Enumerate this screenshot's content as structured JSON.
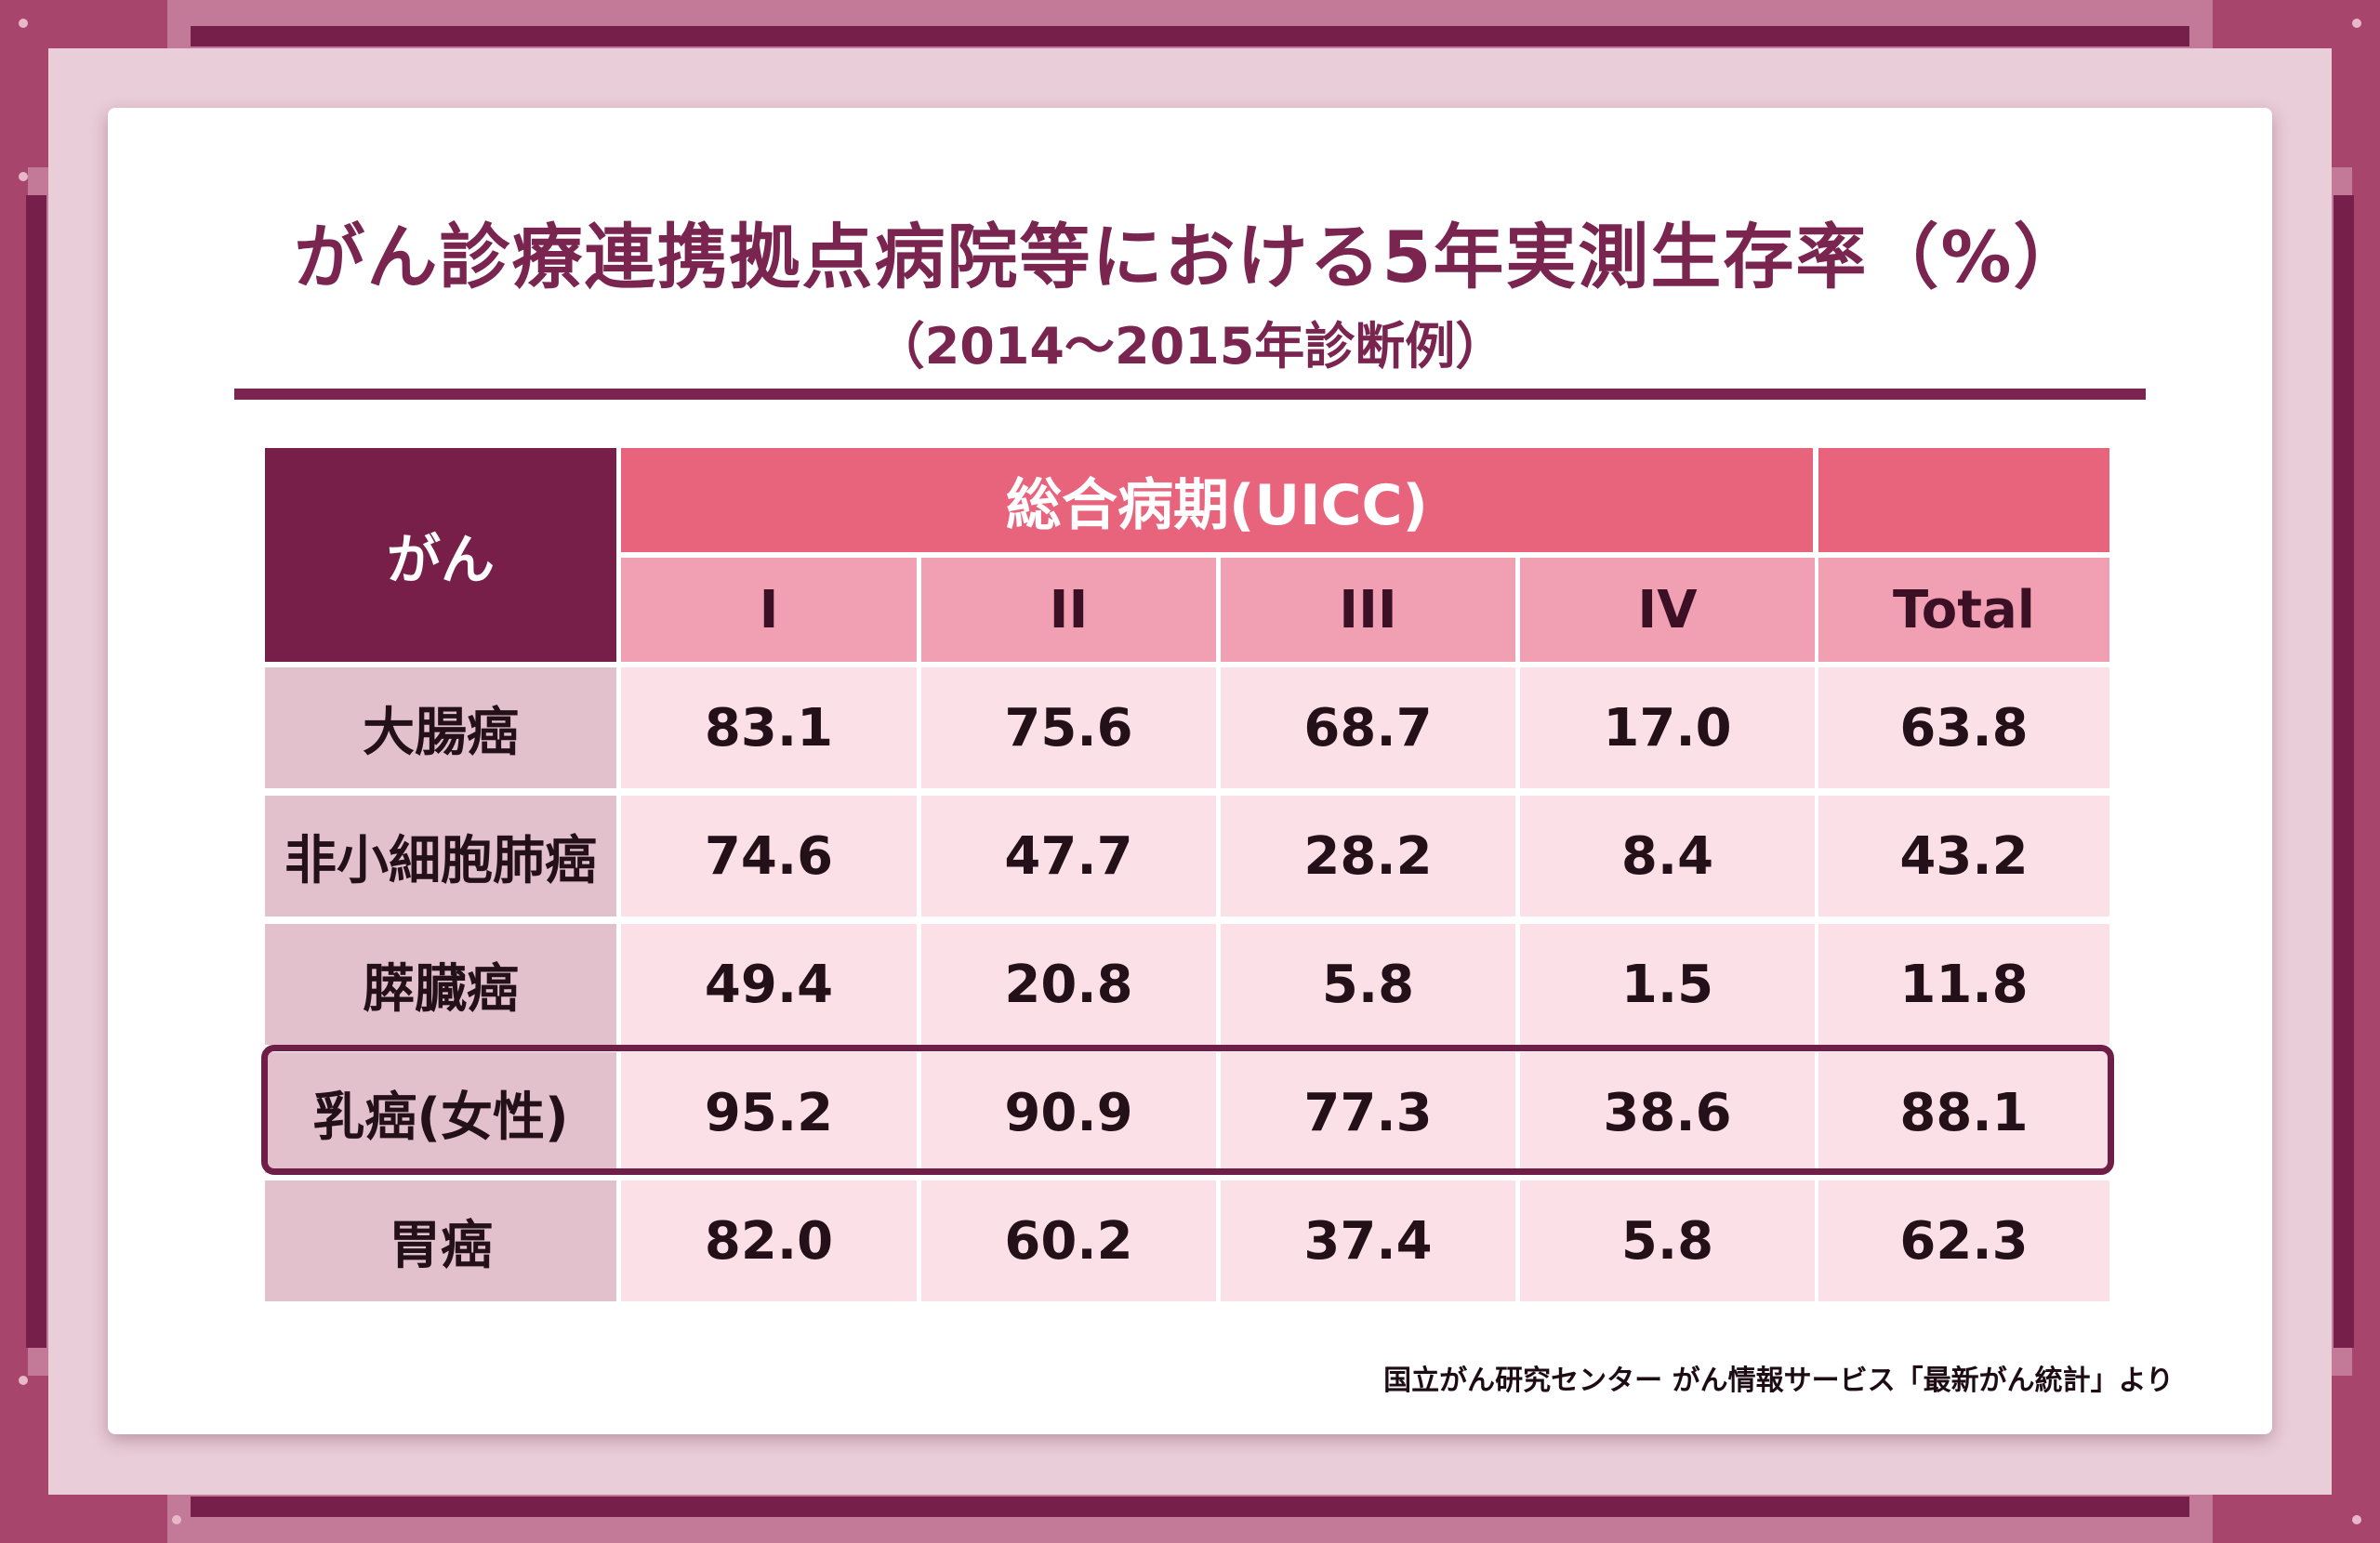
{
  "colors": {
    "accent_dark": "#771f49",
    "header_pink": "#e8647d",
    "subheader_pink": "#f0a0b2",
    "row_label_bg": "#e3c1cc",
    "row_value_bg": "#fbe0e7",
    "frame": "#a8456d"
  },
  "chart_data": {
    "type": "table",
    "title": "がん診療連携拠点病院等における5年実測生存率（%）",
    "subtitle": "（2014〜2015年診断例）",
    "corner_header": "がん",
    "group_header": "総合病期(UICC)",
    "group_header_blank": "",
    "columns": [
      "I",
      "II",
      "III",
      "IV",
      "Total"
    ],
    "rows": [
      {
        "label": "大腸癌",
        "values": [
          "83.1",
          "75.6",
          "68.7",
          "17.0",
          "63.8"
        ],
        "highlighted": false
      },
      {
        "label": "非小細胞肺癌",
        "values": [
          "74.6",
          "47.7",
          "28.2",
          "8.4",
          "43.2"
        ],
        "highlighted": false
      },
      {
        "label": "膵臓癌",
        "values": [
          "49.4",
          "20.8",
          "5.8",
          "1.5",
          "11.8"
        ],
        "highlighted": false
      },
      {
        "label": "乳癌(女性)",
        "values": [
          "95.2",
          "90.9",
          "77.3",
          "38.6",
          "88.1"
        ],
        "highlighted": true
      },
      {
        "label": "胃癌",
        "values": [
          "82.0",
          "60.2",
          "37.4",
          "5.8",
          "62.3"
        ],
        "highlighted": false
      }
    ],
    "source": "国立がん研究センター がん情報サービス「最新がん統計」より"
  }
}
